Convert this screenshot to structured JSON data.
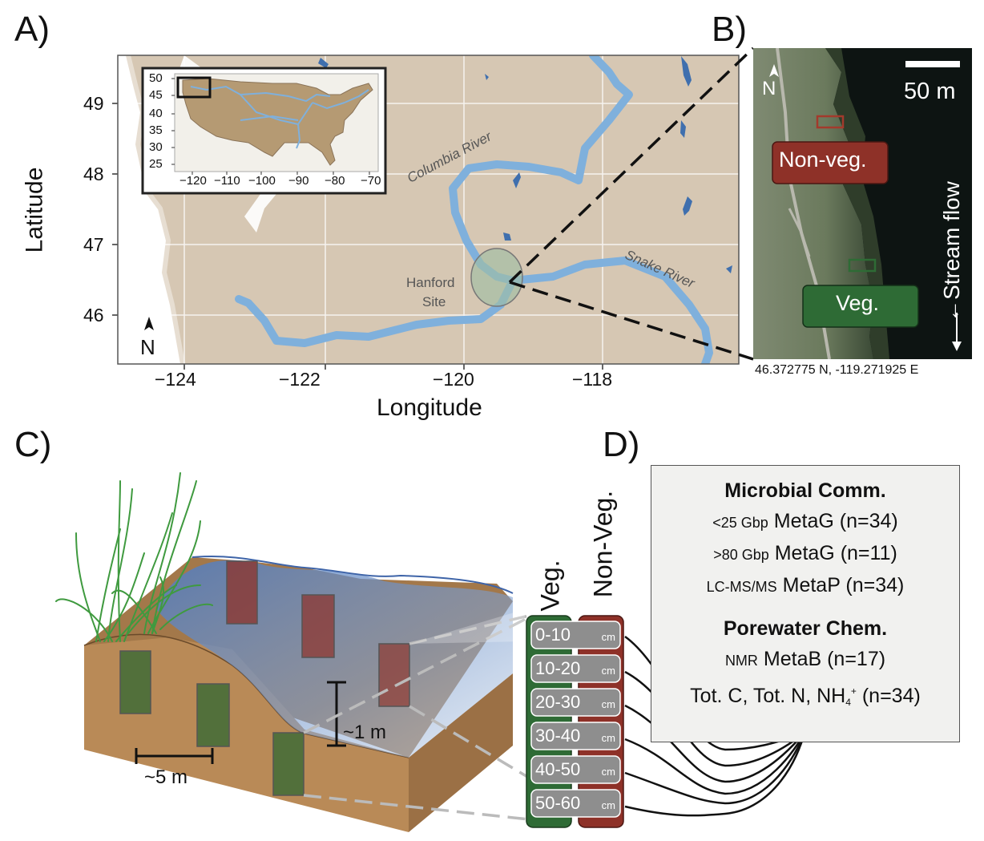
{
  "panels": {
    "a": "A)",
    "b": "B)",
    "c": "C)",
    "d": "D)"
  },
  "map": {
    "xlabel": "Longitude",
    "ylabel": "Latitude",
    "x_ticks": [
      "−124",
      "−122",
      "−120",
      "−118"
    ],
    "y_ticks": [
      "49",
      "48",
      "47",
      "46"
    ],
    "north": "N",
    "river_columbia": "Columbia River",
    "river_snake": "Snake River",
    "site_line1": "Hanford",
    "site_line2": "Site",
    "inset": {
      "x_ticks": [
        "−120",
        "−110",
        "−100",
        "−90",
        "−80",
        "−70"
      ],
      "y_ticks": [
        "50",
        "45",
        "40",
        "35",
        "30",
        "25"
      ]
    }
  },
  "photo": {
    "scale": "50 m",
    "north": "N",
    "label_nonveg": "Non-veg.",
    "label_veg": "Veg.",
    "flow": "←Stream flow",
    "coordinates": "46.372775 N, -119.271925 E"
  },
  "block": {
    "depth_scale": "~1 m",
    "width_scale": "~5 m"
  },
  "cores": {
    "veg_label": "Veg.",
    "nonveg_label": "Non-Veg.",
    "unit": "cm",
    "depths": [
      "0-10",
      "10-20",
      "20-30",
      "30-40",
      "40-50",
      "50-60"
    ]
  },
  "analyses": {
    "microbial_heading": "Microbial Comm.",
    "metag1_prefix": "<25 Gbp",
    "metag1_text": "MetaG (n=34)",
    "metag2_prefix": ">80 Gbp",
    "metag2_text": "MetaG (n=11)",
    "metap_prefix": "LC-MS/MS",
    "metap_text": "MetaP (n=34)",
    "porewater_heading": "Porewater Chem.",
    "metab_prefix": "NMR",
    "metab_text": "MetaB (n=17)",
    "chem_text": "Tot. C, Tot. N, NH",
    "chem_sub": "4",
    "chem_sup": "+",
    "chem_tail": " (n=34)"
  },
  "colors": {
    "land": "#d6c7b3",
    "river": "#7fb0dc",
    "lake": "#3f6fae",
    "veg_green": "#2e6b35",
    "nonveg_red": "#8e3128",
    "soil": "#b98a57",
    "water": "#4f7bbf"
  }
}
